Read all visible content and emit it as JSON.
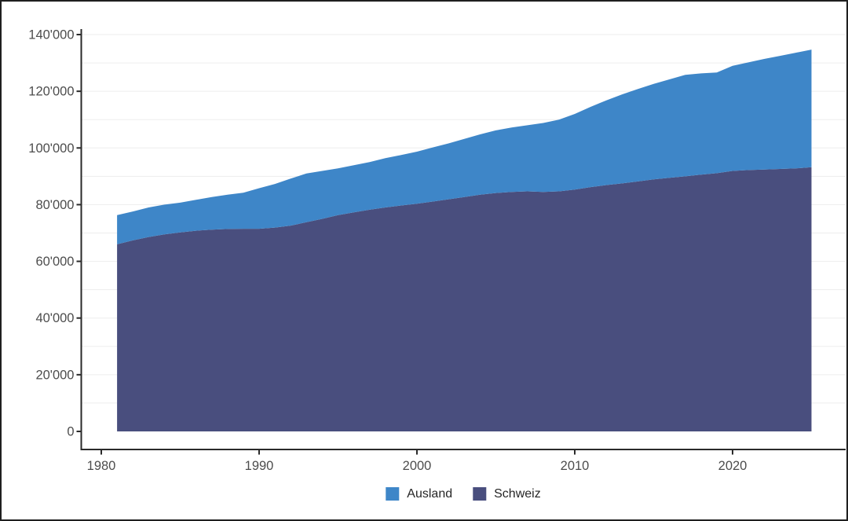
{
  "chart_data": {
    "type": "area",
    "stacked": true,
    "title": "",
    "xlabel": "",
    "ylabel": "",
    "grid": "horizontal-faint",
    "gridline_color": "#ededed",
    "axis_line_color": "#2a2a2a",
    "axis_text_color": "#4d4d4d",
    "background": "#ffffff",
    "xlim": [
      1978.8,
      2027.2
    ],
    "ylim": [
      0,
      140000
    ],
    "x_ticks": [
      1980,
      1990,
      2000,
      2010,
      2020
    ],
    "x_tick_labels": [
      "1980",
      "1990",
      "2000",
      "2010",
      "2020"
    ],
    "y_ticks": [
      0,
      20000,
      40000,
      60000,
      80000,
      100000,
      120000,
      140000
    ],
    "y_tick_labels": [
      "0",
      "20'000",
      "40'000",
      "60'000",
      "80'000",
      "100'000",
      "120'000",
      "140'000"
    ],
    "x": [
      1981,
      1982,
      1983,
      1984,
      1985,
      1986,
      1987,
      1988,
      1989,
      1990,
      1991,
      1992,
      1993,
      1994,
      1995,
      1996,
      1997,
      1998,
      1999,
      2000,
      2001,
      2002,
      2003,
      2004,
      2005,
      2006,
      2007,
      2008,
      2009,
      2010,
      2011,
      2012,
      2013,
      2014,
      2015,
      2016,
      2017,
      2018,
      2019,
      2020,
      2021,
      2022,
      2023,
      2024,
      2025
    ],
    "series": [
      {
        "name": "Schweiz",
        "color": "#494E7E",
        "values": [
          66000,
          67400,
          68600,
          69500,
          70200,
          70800,
          71200,
          71400,
          71500,
          71500,
          71900,
          72600,
          73800,
          75000,
          76300,
          77300,
          78200,
          79000,
          79700,
          80300,
          81100,
          81900,
          82700,
          83500,
          84100,
          84500,
          84700,
          84500,
          84700,
          85300,
          86200,
          86900,
          87500,
          88200,
          88900,
          89500,
          90000,
          90600,
          91100,
          91900,
          92200,
          92400,
          92600,
          92800,
          93200
        ]
      },
      {
        "name": "Ausland",
        "color": "#3E86C8",
        "values": [
          10300,
          10200,
          10400,
          10500,
          10500,
          10900,
          11500,
          12100,
          12700,
          14300,
          15400,
          16600,
          17200,
          16900,
          16500,
          16600,
          16800,
          17400,
          17800,
          18400,
          19100,
          19700,
          20500,
          21300,
          22100,
          22700,
          23300,
          24300,
          25300,
          26700,
          28300,
          29900,
          31400,
          32600,
          33700,
          34700,
          35800,
          35700,
          35500,
          37100,
          38000,
          39000,
          39900,
          40800,
          41500
        ]
      }
    ],
    "legend": {
      "position": "bottom-center",
      "entries": [
        {
          "label": "Ausland",
          "color": "#3E86C8"
        },
        {
          "label": "Schweiz",
          "color": "#494E7E"
        }
      ]
    }
  }
}
